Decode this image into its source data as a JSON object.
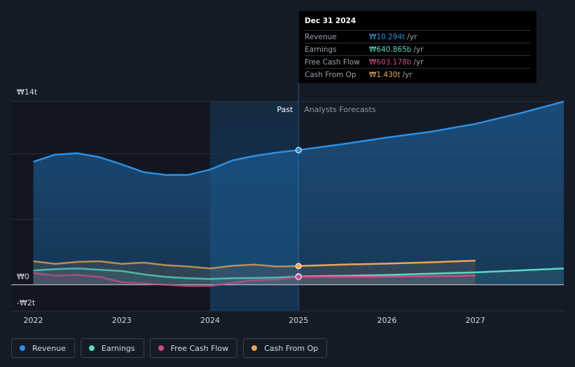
{
  "tooltip": {
    "date": "Dec 31 2024",
    "rows": [
      {
        "label": "Revenue",
        "value": "₩10.294t",
        "unit": "/yr",
        "color": "#2d8fe3"
      },
      {
        "label": "Earnings",
        "value": "₩640.865b",
        "unit": "/yr",
        "color": "#5ad9c3"
      },
      {
        "label": "Free Cash Flow",
        "value": "₩603.178b",
        "unit": "/yr",
        "color": "#cc4b86"
      },
      {
        "label": "Cash From Op",
        "value": "₩1.430t",
        "unit": "/yr",
        "color": "#e8a656"
      }
    ]
  },
  "colors": {
    "background": "#151b26",
    "revenue": "#2d8fe3",
    "earnings": "#5ad9c3",
    "free_cash_flow": "#cc4b86",
    "cash_from_op": "#e8a656"
  },
  "chart_data": {
    "type": "line",
    "ylim": [
      -2,
      14
    ],
    "y_ticks": [
      {
        "value": 14,
        "label": "₩14t"
      },
      {
        "value": 0,
        "label": "₩0"
      },
      {
        "value": -2,
        "label": "-₩2t"
      }
    ],
    "x_ticks": [
      {
        "value": 2022,
        "label": "2022"
      },
      {
        "value": 2023,
        "label": "2023"
      },
      {
        "value": 2024,
        "label": "2024"
      },
      {
        "value": 2025,
        "label": "2025"
      },
      {
        "value": 2026,
        "label": "2026"
      },
      {
        "value": 2027,
        "label": "2027"
      }
    ],
    "xlim": [
      2021.75,
      2028.0
    ],
    "divider_x": 2025.0,
    "highlight_from": 2024.0,
    "past_label": "Past",
    "forecast_label": "Analysts Forecasts",
    "series": [
      {
        "name": "Revenue",
        "key": "revenue",
        "past": [
          [
            2022.0,
            9.4
          ],
          [
            2022.25,
            9.95
          ],
          [
            2022.5,
            10.05
          ],
          [
            2022.75,
            9.75
          ],
          [
            2023.0,
            9.2
          ],
          [
            2023.25,
            8.6
          ],
          [
            2023.5,
            8.4
          ],
          [
            2023.75,
            8.4
          ],
          [
            2024.0,
            8.8
          ],
          [
            2024.25,
            9.5
          ],
          [
            2024.5,
            9.85
          ],
          [
            2024.75,
            10.1
          ],
          [
            2025.0,
            10.294
          ]
        ],
        "forecast": [
          [
            2025.0,
            10.294
          ],
          [
            2025.5,
            10.75
          ],
          [
            2026.0,
            11.25
          ],
          [
            2026.5,
            11.7
          ],
          [
            2027.0,
            12.3
          ],
          [
            2027.5,
            13.1
          ],
          [
            2028.0,
            14.0
          ]
        ]
      },
      {
        "name": "Earnings",
        "key": "earnings",
        "past": [
          [
            2022.0,
            1.1
          ],
          [
            2022.25,
            1.2
          ],
          [
            2022.5,
            1.25
          ],
          [
            2022.75,
            1.15
          ],
          [
            2023.0,
            1.05
          ],
          [
            2023.25,
            0.8
          ],
          [
            2023.5,
            0.6
          ],
          [
            2023.75,
            0.5
          ],
          [
            2024.0,
            0.45
          ],
          [
            2024.25,
            0.5
          ],
          [
            2024.5,
            0.52
          ],
          [
            2024.75,
            0.55
          ],
          [
            2025.0,
            0.641
          ]
        ],
        "forecast": [
          [
            2025.0,
            0.641
          ],
          [
            2025.5,
            0.68
          ],
          [
            2026.0,
            0.75
          ],
          [
            2026.5,
            0.85
          ],
          [
            2027.0,
            0.95
          ],
          [
            2027.5,
            1.1
          ],
          [
            2028.0,
            1.25
          ]
        ]
      },
      {
        "name": "Free Cash Flow",
        "key": "free_cash_flow",
        "past": [
          [
            2022.0,
            0.9
          ],
          [
            2022.25,
            0.7
          ],
          [
            2022.5,
            0.75
          ],
          [
            2022.75,
            0.6
          ],
          [
            2023.0,
            0.2
          ],
          [
            2023.25,
            0.1
          ],
          [
            2023.5,
            0.0
          ],
          [
            2023.75,
            -0.1
          ],
          [
            2024.0,
            -0.1
          ],
          [
            2024.25,
            0.15
          ],
          [
            2024.5,
            0.35
          ],
          [
            2024.75,
            0.4
          ],
          [
            2025.0,
            0.603
          ]
        ],
        "forecast": [
          [
            2025.0,
            0.603
          ],
          [
            2025.5,
            0.6
          ],
          [
            2026.0,
            0.62
          ],
          [
            2026.5,
            0.65
          ],
          [
            2027.0,
            0.7
          ]
        ]
      },
      {
        "name": "Cash From Op",
        "key": "cash_from_op",
        "past": [
          [
            2022.0,
            1.8
          ],
          [
            2022.25,
            1.6
          ],
          [
            2022.5,
            1.75
          ],
          [
            2022.75,
            1.8
          ],
          [
            2023.0,
            1.6
          ],
          [
            2023.25,
            1.7
          ],
          [
            2023.5,
            1.5
          ],
          [
            2023.75,
            1.4
          ],
          [
            2024.0,
            1.25
          ],
          [
            2024.25,
            1.45
          ],
          [
            2024.5,
            1.55
          ],
          [
            2024.75,
            1.4
          ],
          [
            2025.0,
            1.43
          ]
        ],
        "forecast": [
          [
            2025.0,
            1.43
          ],
          [
            2025.5,
            1.55
          ],
          [
            2026.0,
            1.62
          ],
          [
            2026.5,
            1.72
          ],
          [
            2027.0,
            1.85
          ]
        ]
      }
    ]
  },
  "legend": [
    {
      "label": "Revenue",
      "key": "revenue"
    },
    {
      "label": "Earnings",
      "key": "earnings"
    },
    {
      "label": "Free Cash Flow",
      "key": "free_cash_flow"
    },
    {
      "label": "Cash From Op",
      "key": "cash_from_op"
    }
  ]
}
